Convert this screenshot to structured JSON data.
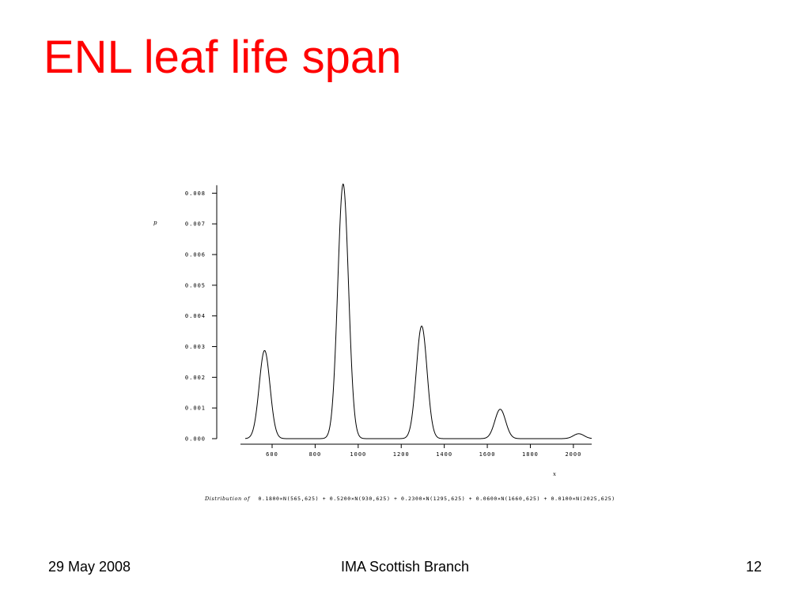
{
  "slide": {
    "title": "ENL leaf life span",
    "footer_date": "29 May 2008",
    "footer_center": "IMA Scottish Branch",
    "footer_page": "12",
    "title_color": "#ff0000"
  },
  "chart_data": {
    "type": "line",
    "ylabel": "p",
    "xlabel": "x",
    "caption_prefix": "Distribution of",
    "caption_formula": "0.1800×N(565,625) + 0.5200×N(930,625) + 0.2300×N(1295,625) + 0.0600×N(1660,625) + 0.0100×N(2025,625)",
    "xlim": [
      475,
      2085
    ],
    "ylim": [
      0,
      0.0085
    ],
    "x_ticks": [
      600,
      800,
      1000,
      1200,
      1400,
      1600,
      1800,
      2000
    ],
    "x_tick_labels": [
      "600",
      "800",
      "1000",
      "1200",
      "1400",
      "1600",
      "1800",
      "2000"
    ],
    "y_ticks": [
      0.0,
      0.001,
      0.002,
      0.003,
      0.004,
      0.005,
      0.006,
      0.007,
      0.008
    ],
    "y_tick_labels": [
      "0.000",
      "0.001",
      "0.002",
      "0.003",
      "0.004",
      "0.005",
      "0.006",
      "0.007",
      "0.008"
    ],
    "curve_x_range": [
      475,
      2085
    ],
    "components": [
      {
        "weight": 0.18,
        "mean": 565,
        "variance": 625
      },
      {
        "weight": 0.52,
        "mean": 930,
        "variance": 625
      },
      {
        "weight": 0.23,
        "mean": 1295,
        "variance": 625
      },
      {
        "weight": 0.06,
        "mean": 1660,
        "variance": 625
      },
      {
        "weight": 0.01,
        "mean": 2025,
        "variance": 625
      }
    ],
    "grid": false,
    "line_color": "#000000"
  }
}
